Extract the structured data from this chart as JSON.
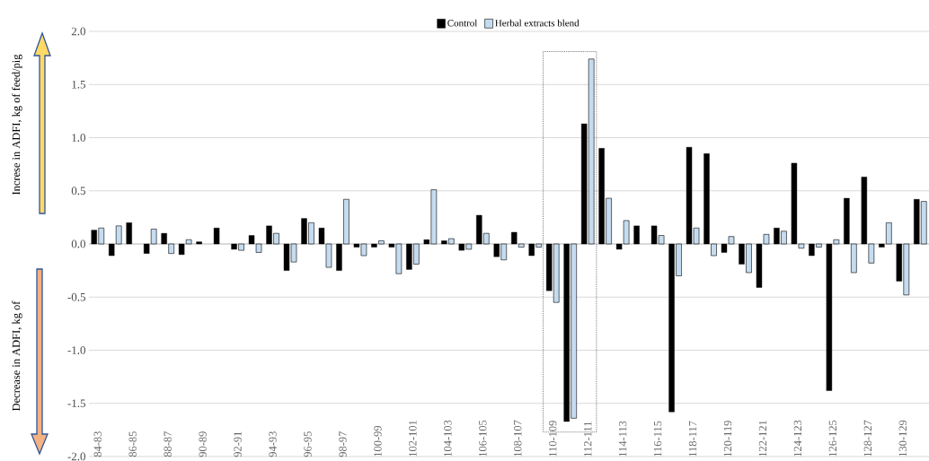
{
  "chart_data": {
    "type": "bar",
    "ylabel": "Increse in ADFI, kg of feed/pig",
    "annotations": [
      "Decrease in ADFI, kg of"
    ],
    "categories": [
      "84-83",
      null,
      "86-85",
      null,
      "88-87",
      null,
      "90-89",
      null,
      "92-91",
      null,
      "94-93",
      null,
      "96-95",
      null,
      "98-97",
      null,
      "100-99",
      null,
      "102-101",
      null,
      "104-103",
      null,
      "106-105",
      null,
      "108-107",
      null,
      "110-109",
      null,
      "112-111",
      null,
      "114-113",
      null,
      "116-115",
      null,
      "118-117",
      null,
      "120-119",
      null,
      "122-121",
      null,
      "124-123",
      null,
      "126-125",
      null,
      "128-127",
      null,
      "130-129",
      null
    ],
    "series": [
      {
        "name": "Control",
        "color": "#000000",
        "values": [
          0.13,
          -0.11,
          0.2,
          -0.09,
          0.1,
          -0.1,
          0.02,
          0.15,
          -0.05,
          0.08,
          0.17,
          -0.25,
          0.24,
          0.15,
          -0.25,
          -0.03,
          -0.03,
          -0.03,
          -0.24,
          0.04,
          0.03,
          -0.06,
          0.27,
          -0.12,
          0.11,
          -0.11,
          -0.44,
          -1.67,
          1.13,
          0.9,
          -0.05,
          0.17,
          0.17,
          -1.58,
          0.91,
          0.85,
          -0.08,
          -0.19,
          -0.41,
          0.15,
          0.76,
          -0.11,
          -1.38,
          0.43,
          0.63,
          -0.03,
          -0.35,
          0.42
        ]
      },
      {
        "name": "Herbal extracts blend",
        "color": "#c5dcf0",
        "values": [
          0.15,
          0.17,
          null,
          0.14,
          -0.09,
          0.04,
          null,
          null,
          -0.06,
          -0.08,
          0.1,
          -0.17,
          0.2,
          -0.22,
          0.42,
          -0.11,
          0.03,
          -0.28,
          -0.19,
          0.51,
          0.05,
          -0.05,
          0.1,
          -0.15,
          -0.03,
          -0.03,
          -0.55,
          -1.64,
          1.74,
          0.43,
          0.22,
          null,
          0.08,
          -0.3,
          0.15,
          -0.11,
          0.07,
          -0.27,
          0.09,
          0.12,
          -0.04,
          -0.03,
          0.04,
          -0.27,
          -0.18,
          0.2,
          -0.48,
          0.4
        ]
      }
    ],
    "ylim": [
      -2,
      2
    ],
    "yticks": [
      {
        "value": -2,
        "label": "-2.0"
      },
      {
        "value": -1.5,
        "label": "-1.5"
      },
      {
        "value": -1,
        "label": "-1.0"
      },
      {
        "value": -0.5,
        "label": "-0.5"
      },
      {
        "value": 0,
        "label": "0.0"
      },
      {
        "value": 0.5,
        "label": "0.5"
      },
      {
        "value": 1,
        "label": "1.0"
      },
      {
        "value": 1.5,
        "label": "1.5"
      },
      {
        "value": 2,
        "label": "2.0"
      }
    ],
    "grid": "y",
    "legend": "top"
  }
}
